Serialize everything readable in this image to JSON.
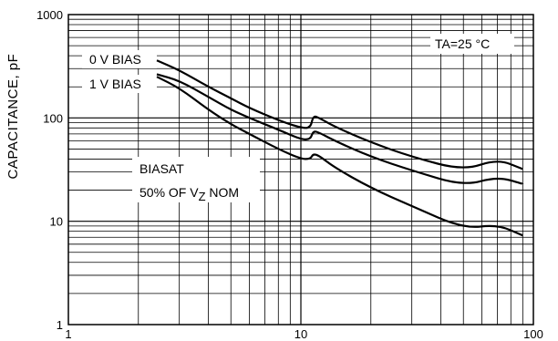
{
  "chart_data": {
    "type": "line",
    "title": "",
    "ylabel": "CAPACITANCE, pF",
    "xlabel": "",
    "x_scale": "log",
    "y_scale": "log",
    "xlim": [
      1,
      100
    ],
    "ylim": [
      1,
      1000
    ],
    "grid": true,
    "x_tick_labels": [
      "1",
      "10",
      "100"
    ],
    "y_tick_labels": [
      "1",
      "10",
      "100",
      "1000"
    ],
    "annotations": {
      "temperature": "TA=25 °C",
      "bias_0v": "0 V BIAS",
      "bias_1v": "1 V BIAS",
      "bias_at_line1": "BIASAT",
      "bias_at_line2": "50% OF VZ NOM"
    },
    "series": [
      {
        "name": "0 V BIAS",
        "x": [
          2.4,
          3,
          4,
          5,
          6,
          8,
          10,
          11,
          11.3,
          12,
          14,
          20,
          30,
          50,
          70,
          90
        ],
        "y": [
          360,
          290,
          200,
          155,
          125,
          95,
          80,
          80,
          105,
          100,
          82,
          58,
          42,
          31,
          40,
          32
        ]
      },
      {
        "name": "1 V BIAS",
        "x": [
          2.4,
          3,
          4,
          5,
          6,
          8,
          10,
          11,
          11.3,
          12,
          14,
          20,
          30,
          50,
          70,
          90
        ],
        "y": [
          265,
          230,
          160,
          120,
          100,
          77,
          62,
          62,
          75,
          72,
          60,
          42,
          31,
          22,
          27,
          23
        ]
      },
      {
        "name": "BIAS AT 50% OF VZ NOM",
        "x": [
          2.4,
          3,
          4,
          5,
          6,
          8,
          10,
          11,
          11.3,
          12,
          14,
          20,
          30,
          50,
          70,
          90
        ],
        "y": [
          250,
          195,
          120,
          87,
          70,
          50,
          40,
          40,
          45,
          43,
          33,
          21,
          14,
          8.5,
          9.3,
          7.3
        ]
      }
    ]
  }
}
